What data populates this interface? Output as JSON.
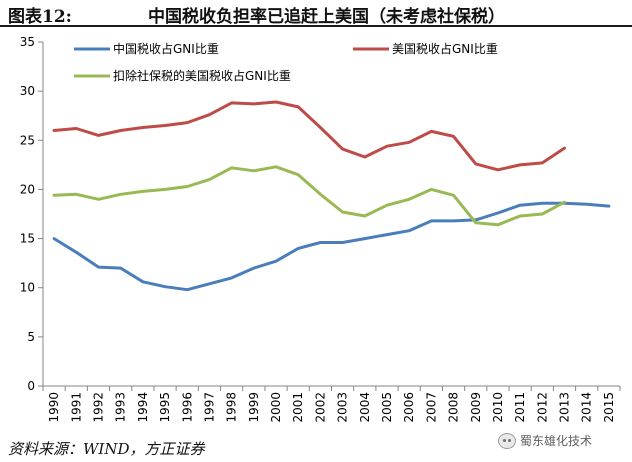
{
  "header": {
    "figure_label": "图表12:",
    "title": "中国税收负担率已追赶上美国（未考虑社保税）"
  },
  "footer": {
    "source": "资料来源：WIND，方正证券",
    "watermark": "蜀东雄化技术"
  },
  "colors": {
    "background": "#ffffff",
    "axis": "#868686",
    "series_china": "#4a7ebb",
    "series_us": "#be4b48",
    "series_us_ex_ss": "#98b954"
  },
  "chart_data": {
    "type": "line",
    "title": "",
    "xlabel": "",
    "ylabel": "",
    "ylim": [
      0,
      35
    ],
    "yticks": [
      0,
      5,
      10,
      15,
      20,
      25,
      30,
      35
    ],
    "grid": false,
    "legend_position": "top",
    "categories": [
      "1990",
      "1991",
      "1992",
      "1993",
      "1994",
      "1995",
      "1996",
      "1997",
      "1998",
      "1999",
      "2000",
      "2001",
      "2002",
      "2003",
      "2004",
      "2005",
      "2006",
      "2007",
      "2008",
      "2009",
      "2010",
      "2011",
      "2012",
      "2013",
      "2014",
      "2015"
    ],
    "series": [
      {
        "name": "中国税收占GNI比重",
        "color": "#4a7ebb",
        "values": [
          15.0,
          13.6,
          12.1,
          12.0,
          10.6,
          10.1,
          9.8,
          10.4,
          11.0,
          12.0,
          12.7,
          14.0,
          14.6,
          14.6,
          15.0,
          15.4,
          15.8,
          16.8,
          16.8,
          16.9,
          17.6,
          18.4,
          18.6,
          18.6,
          18.5,
          18.3
        ]
      },
      {
        "name": "美国税收占GNI比重",
        "color": "#be4b48",
        "values": [
          26.0,
          26.2,
          25.5,
          26.0,
          26.3,
          26.5,
          26.8,
          27.6,
          28.8,
          28.7,
          28.9,
          28.4,
          26.3,
          24.1,
          23.3,
          24.4,
          24.8,
          25.9,
          25.4,
          22.6,
          22.0,
          22.5,
          22.7,
          24.2,
          null,
          null
        ]
      },
      {
        "name": "扣除社保税的美国税收占GNI比重",
        "color": "#98b954",
        "values": [
          19.4,
          19.5,
          19.0,
          19.5,
          19.8,
          20.0,
          20.3,
          21.0,
          22.2,
          21.9,
          22.3,
          21.5,
          19.5,
          17.7,
          17.3,
          18.4,
          19.0,
          20.0,
          19.4,
          16.6,
          16.4,
          17.3,
          17.5,
          18.7,
          null,
          null
        ]
      }
    ]
  }
}
